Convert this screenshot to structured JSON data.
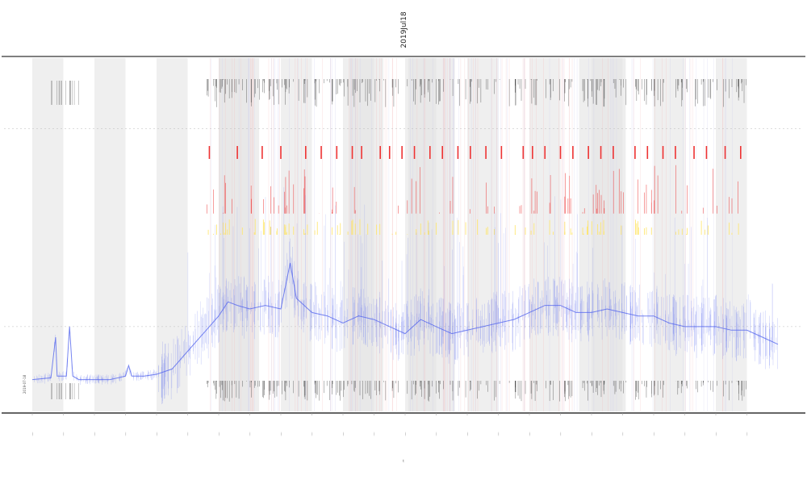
{
  "chart_data": {
    "type": "line",
    "title": "2019Jul18",
    "xlabel": "t",
    "ylabel": "",
    "tick_count": 24,
    "ylim": [
      0,
      100
    ],
    "shade_bands": [
      [
        0,
        1
      ],
      [
        2,
        3
      ],
      [
        4,
        5
      ],
      [
        6,
        7
      ],
      [
        8,
        9
      ],
      [
        10,
        11
      ],
      [
        12,
        13
      ],
      [
        14,
        15
      ],
      [
        16,
        17
      ],
      [
        18,
        19
      ],
      [
        20,
        21
      ],
      [
        22,
        23
      ]
    ],
    "mid_bands": [
      [
        6,
        7.3
      ],
      [
        10.2,
        11.3
      ],
      [
        12.1,
        13.6
      ],
      [
        17.6,
        19.1
      ]
    ],
    "ref_lines": [
      80,
      24
    ],
    "threshold_colors": {
      "signal": "#5566ee",
      "yellow": "#ffe566",
      "red": "#ee3333",
      "black": "#222222"
    },
    "red_markers": [
      5.7,
      6.6,
      7.4,
      8.0,
      8.8,
      9.3,
      9.8,
      10.3,
      10.6,
      11.2,
      11.5,
      11.9,
      12.3,
      12.8,
      13.2,
      13.7,
      14.1,
      14.6,
      15.1,
      15.8,
      16.1,
      16.5,
      17.0,
      17.4,
      17.9,
      18.3,
      18.7,
      19.4,
      19.8,
      20.3,
      20.7,
      21.3,
      21.7,
      22.3,
      22.8
    ],
    "series": [
      {
        "values": [
          [
            0,
            9
          ],
          [
            0.6,
            9.5
          ],
          [
            0.75,
            21
          ],
          [
            0.8,
            10
          ],
          [
            1.1,
            10
          ],
          [
            1.2,
            24
          ],
          [
            1.3,
            10
          ],
          [
            1.5,
            9
          ],
          [
            2,
            9
          ],
          [
            2.5,
            9
          ],
          [
            3,
            10
          ],
          [
            3.1,
            13
          ],
          [
            3.2,
            10
          ],
          [
            3.6,
            10
          ],
          [
            4,
            10.5
          ],
          [
            4.5,
            12
          ],
          [
            5,
            17
          ],
          [
            5.5,
            22
          ],
          [
            6,
            27
          ],
          [
            6.3,
            31
          ],
          [
            6.6,
            30
          ],
          [
            7,
            29
          ],
          [
            7.5,
            30
          ],
          [
            8,
            29
          ],
          [
            8.3,
            42
          ],
          [
            8.5,
            32
          ],
          [
            9,
            28
          ],
          [
            9.5,
            27
          ],
          [
            10,
            25
          ],
          [
            10.5,
            27
          ],
          [
            11,
            26
          ],
          [
            11.5,
            24
          ],
          [
            12,
            22
          ],
          [
            12.5,
            26
          ],
          [
            13,
            24
          ],
          [
            13.5,
            22
          ],
          [
            14,
            23
          ],
          [
            14.5,
            24
          ],
          [
            15,
            25
          ],
          [
            15.5,
            26
          ],
          [
            16,
            28
          ],
          [
            16.5,
            30
          ],
          [
            17,
            30
          ],
          [
            17.5,
            28
          ],
          [
            18,
            28
          ],
          [
            18.5,
            29
          ],
          [
            19,
            28
          ],
          [
            19.5,
            27
          ],
          [
            20,
            27
          ],
          [
            20.5,
            25
          ],
          [
            21,
            24
          ],
          [
            21.5,
            24
          ],
          [
            22,
            24
          ],
          [
            22.5,
            23
          ],
          [
            23,
            23
          ],
          [
            23.5,
            21
          ],
          [
            24,
            19
          ]
        ]
      }
    ]
  },
  "y_badge": "2019-07-18"
}
